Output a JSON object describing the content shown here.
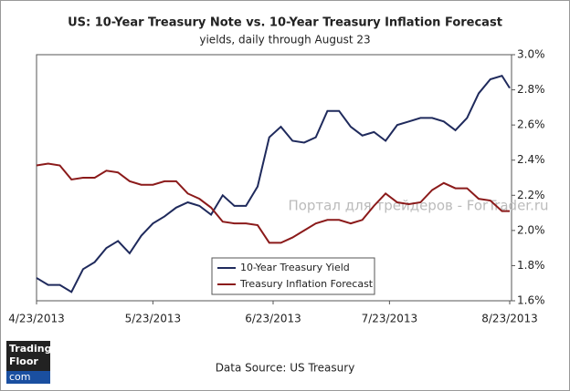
{
  "chart_data": {
    "type": "line",
    "title": "US: 10-Year Treasury Note vs. 10-Year Treasury Inflation Forecast",
    "subtitle": "yields, daily through August 23",
    "x": [
      "2013-04-23",
      "2013-04-26",
      "2013-04-29",
      "2013-05-02",
      "2013-05-05",
      "2013-05-08",
      "2013-05-11",
      "2013-05-14",
      "2013-05-17",
      "2013-05-20",
      "2013-05-23",
      "2013-05-26",
      "2013-05-29",
      "2013-06-01",
      "2013-06-04",
      "2013-06-07",
      "2013-06-10",
      "2013-06-13",
      "2013-06-16",
      "2013-06-19",
      "2013-06-22",
      "2013-06-25",
      "2013-06-28",
      "2013-07-01",
      "2013-07-04",
      "2013-07-07",
      "2013-07-10",
      "2013-07-13",
      "2013-07-16",
      "2013-07-19",
      "2013-07-22",
      "2013-07-25",
      "2013-07-28",
      "2013-07-31",
      "2013-08-03",
      "2013-08-06",
      "2013-08-09",
      "2013-08-12",
      "2013-08-15",
      "2013-08-18",
      "2013-08-21",
      "2013-08-23"
    ],
    "series": [
      {
        "name": "10-Year Treasury Yield",
        "color": "#1f2a5c",
        "values": [
          1.73,
          1.69,
          1.69,
          1.65,
          1.78,
          1.82,
          1.9,
          1.94,
          1.87,
          1.97,
          2.04,
          2.08,
          2.13,
          2.16,
          2.14,
          2.09,
          2.2,
          2.14,
          2.14,
          2.25,
          2.53,
          2.59,
          2.51,
          2.5,
          2.53,
          2.68,
          2.68,
          2.59,
          2.54,
          2.56,
          2.51,
          2.6,
          2.62,
          2.64,
          2.64,
          2.62,
          2.57,
          2.64,
          2.78,
          2.86,
          2.88,
          2.81
        ]
      },
      {
        "name": "Treasury Inflation Forecast",
        "color": "#8b1a1a",
        "values": [
          2.37,
          2.38,
          2.37,
          2.29,
          2.3,
          2.3,
          2.34,
          2.33,
          2.28,
          2.26,
          2.26,
          2.28,
          2.28,
          2.21,
          2.18,
          2.13,
          2.05,
          2.04,
          2.04,
          2.03,
          1.93,
          1.93,
          1.96,
          2.0,
          2.04,
          2.06,
          2.06,
          2.04,
          2.06,
          2.14,
          2.21,
          2.16,
          2.15,
          2.16,
          2.23,
          2.27,
          2.24,
          2.24,
          2.18,
          2.17,
          2.11,
          2.11
        ]
      }
    ],
    "xlim": [
      "2013-04-23",
      "2013-08-23"
    ],
    "xticks": [
      {
        "value": "2013-04-23",
        "label": "4/23/2013"
      },
      {
        "value": "2013-05-23",
        "label": "5/23/2013"
      },
      {
        "value": "2013-06-23",
        "label": "6/23/2013"
      },
      {
        "value": "2013-07-23",
        "label": "7/23/2013"
      },
      {
        "value": "2013-08-23",
        "label": "8/23/2013"
      }
    ],
    "ylim": [
      1.6,
      3.0
    ],
    "yticks": [
      {
        "value": 1.6,
        "label": "1.6%"
      },
      {
        "value": 1.8,
        "label": "1.8%"
      },
      {
        "value": 2.0,
        "label": "2.0%"
      },
      {
        "value": 2.2,
        "label": "2.2%"
      },
      {
        "value": 2.4,
        "label": "2.4%"
      },
      {
        "value": 2.6,
        "label": "2.6%"
      },
      {
        "value": 2.8,
        "label": "2.8%"
      },
      {
        "value": 3.0,
        "label": "3.0%"
      }
    ],
    "grid": false,
    "watermark": "Портал для трейдеров - ForTrader.ru",
    "source": "Data Source: US Treasury",
    "logo": [
      "Trading",
      "Floor",
      "com"
    ]
  }
}
